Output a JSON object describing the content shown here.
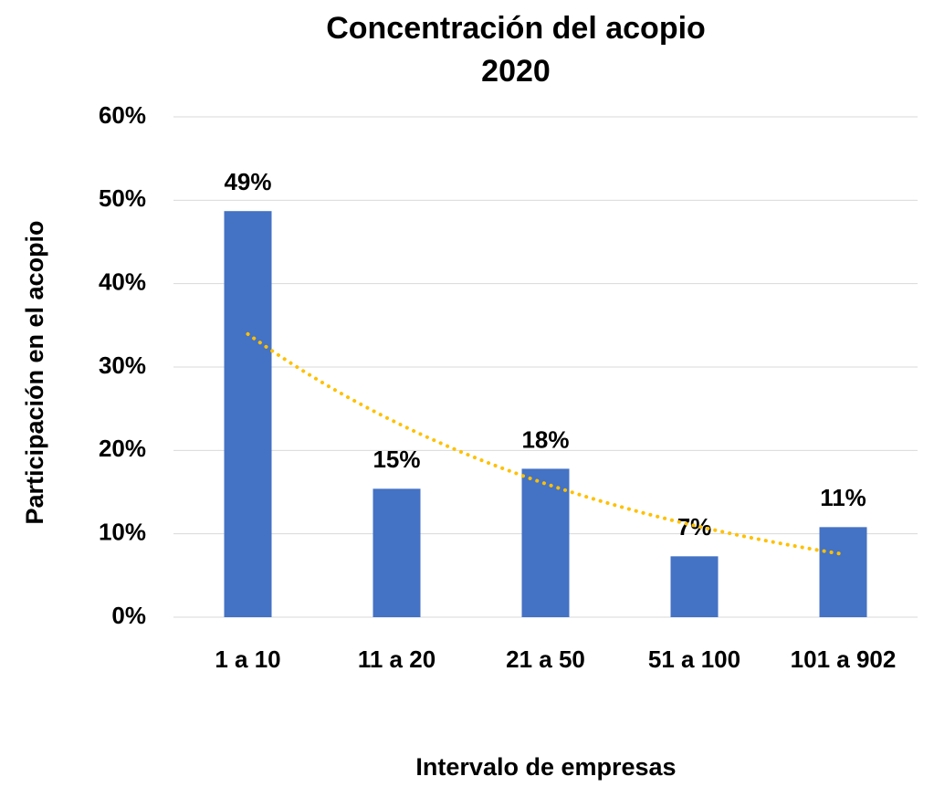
{
  "chart_data": {
    "type": "bar",
    "title": "Concentración del acopio",
    "subtitle": "2020",
    "x_label": "Intervalo de empresas",
    "y_label": "Participación en el acopio",
    "categories": [
      "1 a 10",
      "11 a 20",
      "21 a 50",
      "51 a 100",
      "101 a 902"
    ],
    "values": [
      48.7,
      15.4,
      17.8,
      7.3,
      10.8
    ],
    "value_labels": [
      "49%",
      "15%",
      "18%",
      "7%",
      "11%"
    ],
    "color": "#4472c4",
    "ylim": [
      0,
      60
    ],
    "yticks": [
      {
        "value": 0,
        "label": "0%"
      },
      {
        "value": 10,
        "label": "10%"
      },
      {
        "value": 20,
        "label": "20%"
      },
      {
        "value": 30,
        "label": "30%"
      },
      {
        "value": 40,
        "label": "40%"
      },
      {
        "value": 50,
        "label": "50%"
      },
      {
        "value": 60,
        "label": "60%"
      }
    ],
    "grid": true,
    "trendline": {
      "type": "exponential",
      "color": "#ffc000"
    }
  }
}
